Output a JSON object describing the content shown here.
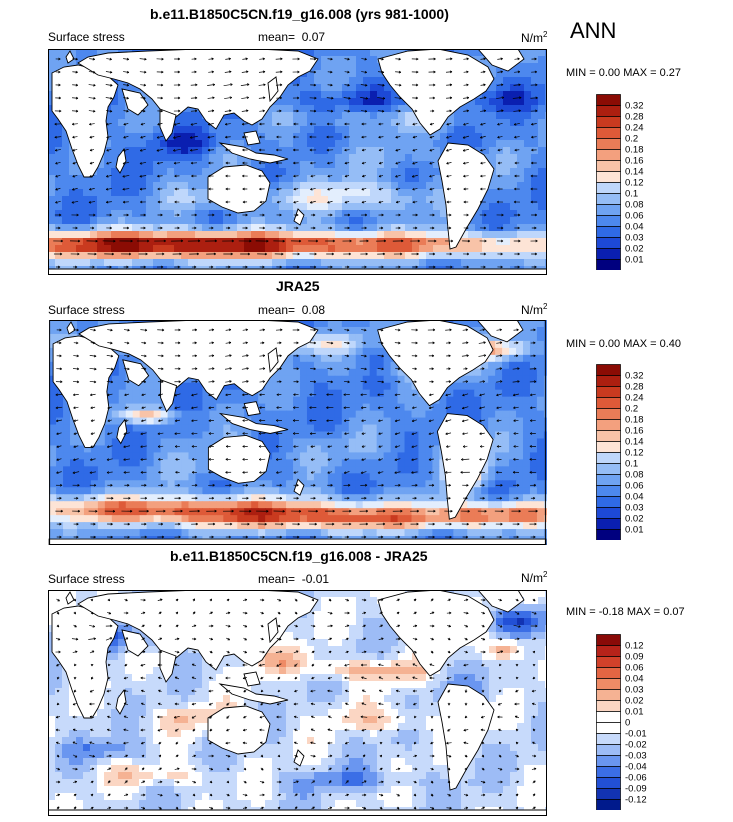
{
  "season": "ANN",
  "color_scales": {
    "magnitude": [
      "#00007f",
      "#0a1fb0",
      "#1d49d6",
      "#2f6ae6",
      "#4d88ee",
      "#6fa3f2",
      "#95bdf6",
      "#bfd7fb",
      "#e3eefd",
      "#fde4d6",
      "#f8c3a8",
      "#f3a07e",
      "#ea7c57",
      "#de5a38",
      "#c93a1f",
      "#ac1f10",
      "#8b0c04"
    ],
    "difference": [
      "#001a8c",
      "#1233b3",
      "#2250d6",
      "#3b6ee6",
      "#6a96f0",
      "#9dbcf6",
      "#c7dafb",
      "#ffffff",
      "#fbd6c3",
      "#f5b293",
      "#ef8b66",
      "#e46543",
      "#d2412a",
      "#b7231a",
      "#8a0a08"
    ]
  },
  "panels": [
    {
      "id": "model",
      "title": "b.e11.B1850C5CN.f19_g16.008 (yrs 981-1000)",
      "left_label": "Surface stress",
      "mean_label": "mean=",
      "mean_value": "0.07",
      "units": "N/m",
      "units_exp": "2",
      "minmax": {
        "min_label": "MIN =",
        "min": "0.00",
        "max_label": "MAX =",
        "max": "0.27"
      },
      "scale": "magnitude",
      "colorbar_labels": [
        "0.32",
        "0.28",
        "0.24",
        "0.2",
        "0.18",
        "0.16",
        "0.14",
        "0.12",
        "0.1",
        "0.08",
        "0.06",
        "0.04",
        "0.03",
        "0.02",
        "0.01"
      ]
    },
    {
      "id": "obs",
      "title": "JRA25",
      "left_label": "Surface stress",
      "mean_label": "mean=",
      "mean_value": "0.08",
      "units": "N/m",
      "units_exp": "2",
      "minmax": {
        "min_label": "MIN =",
        "min": "0.00",
        "max_label": "MAX =",
        "max": "0.40"
      },
      "scale": "magnitude",
      "colorbar_labels": [
        "0.32",
        "0.28",
        "0.24",
        "0.2",
        "0.18",
        "0.16",
        "0.14",
        "0.12",
        "0.1",
        "0.08",
        "0.06",
        "0.04",
        "0.03",
        "0.02",
        "0.01"
      ]
    },
    {
      "id": "diff",
      "title": "b.e11.B1850C5CN.f19_g16.008 - JRA25",
      "left_label": "Surface stress",
      "mean_label": "mean=",
      "mean_value": "-0.01",
      "units": "N/m",
      "units_exp": "2",
      "minmax": {
        "min_label": "MIN =",
        "min": "-0.18",
        "max_label": "MAX =",
        "max": "0.07"
      },
      "scale": "difference",
      "colorbar_labels": [
        "0.12",
        "0.09",
        "0.06",
        "0.04",
        "0.03",
        "0.02",
        "0.01",
        "0",
        "-0.01",
        "-0.02",
        "-0.03",
        "-0.04",
        "-0.06",
        "-0.09",
        "-0.12"
      ]
    }
  ]
}
